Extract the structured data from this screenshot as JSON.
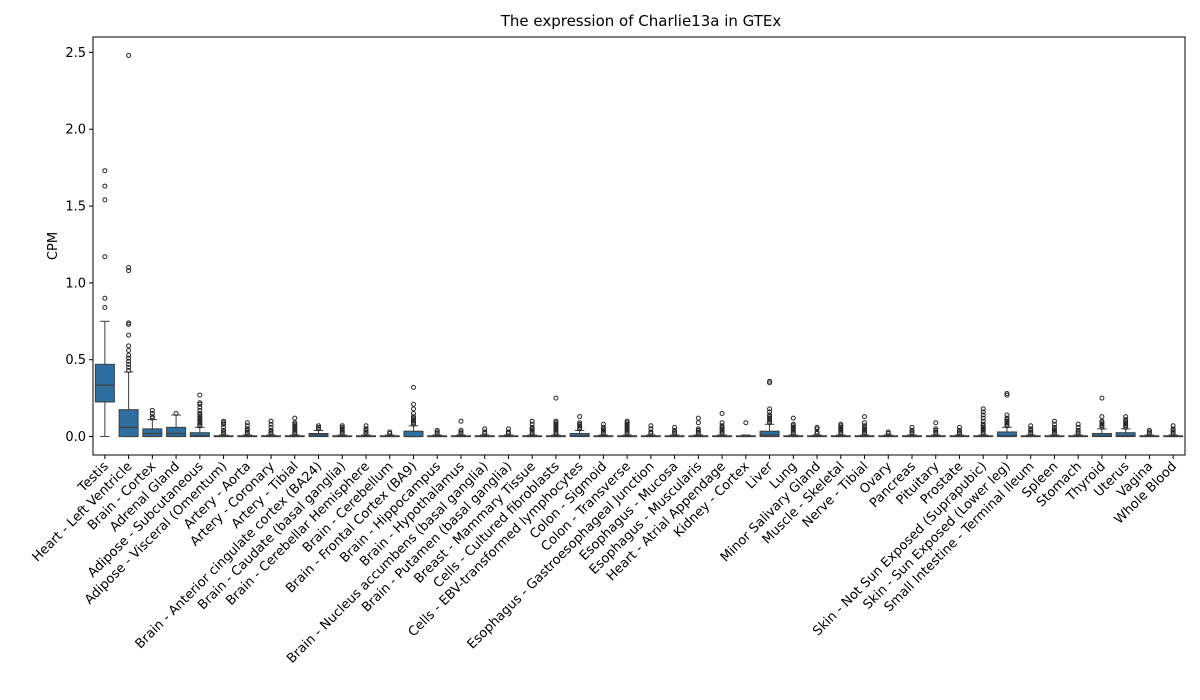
{
  "chart_data": {
    "type": "box",
    "title": "The expression of Charlie13a in GTEx",
    "xlabel": "",
    "ylabel": "CPM",
    "ylim": [
      -0.12,
      2.6
    ],
    "yticks": [
      0.0,
      0.5,
      1.0,
      1.5,
      2.0,
      2.5
    ],
    "ytick_labels": [
      "0.0",
      "0.5",
      "1.0",
      "1.5",
      "2.0",
      "2.5"
    ],
    "grid": false,
    "box_color": "#2f6f9f",
    "categories": [
      "Testis",
      "Heart - Left Ventricle",
      "Brain - Cortex",
      "Adrenal Gland",
      "Adipose - Subcutaneous",
      "Adipose - Visceral (Omentum)",
      "Artery - Aorta",
      "Artery - Coronary",
      "Artery - Tibial",
      "Brain - Anterior cingulate cortex (BA24)",
      "Brain - Caudate (basal ganglia)",
      "Brain - Cerebellar Hemisphere",
      "Brain - Cerebellum",
      "Brain - Frontal Cortex (BA9)",
      "Brain - Hippocampus",
      "Brain - Hypothalamus",
      "Brain - Nucleus accumbens (basal ganglia)",
      "Brain - Putamen (basal ganglia)",
      "Breast - Mammary Tissue",
      "Cells - Cultured fibroblasts",
      "Cells - EBV-transformed lymphocytes",
      "Colon - Sigmoid",
      "Colon - Transverse",
      "Esophagus - Gastroesophageal Junction",
      "Esophagus - Mucosa",
      "Esophagus - Muscularis",
      "Heart - Atrial Appendage",
      "Kidney - Cortex",
      "Liver",
      "Lung",
      "Minor Salivary Gland",
      "Muscle - Skeletal",
      "Nerve - Tibial",
      "Ovary",
      "Pancreas",
      "Pituitary",
      "Prostate",
      "Skin - Not Sun Exposed (Suprapubic)",
      "Skin - Sun Exposed (Lower leg)",
      "Small Intestine - Terminal Ileum",
      "Spleen",
      "Stomach",
      "Thyroid",
      "Uterus",
      "Vagina",
      "Whole Blood"
    ],
    "boxes": [
      {
        "whislo": 0.0,
        "q1": 0.225,
        "med": 0.335,
        "q3": 0.47,
        "whishi": 0.75,
        "fliers": [
          0.84,
          0.9,
          1.17,
          1.54,
          1.63,
          1.73
        ]
      },
      {
        "whislo": 0.0,
        "q1": 0.0,
        "med": 0.06,
        "q3": 0.175,
        "whishi": 0.42,
        "fliers": [
          0.43,
          0.45,
          0.47,
          0.49,
          0.51,
          0.53,
          0.56,
          0.59,
          0.66,
          0.73,
          0.74,
          1.08,
          1.1,
          2.48
        ]
      },
      {
        "whislo": 0.0,
        "q1": 0.0,
        "med": 0.02,
        "q3": 0.05,
        "whishi": 0.11,
        "fliers": [
          0.12,
          0.13,
          0.15,
          0.17
        ]
      },
      {
        "whislo": 0.0,
        "q1": 0.0,
        "med": 0.02,
        "q3": 0.06,
        "whishi": 0.14,
        "fliers": [
          0.15
        ]
      },
      {
        "whislo": 0.0,
        "q1": 0.0,
        "med": 0.005,
        "q3": 0.025,
        "whishi": 0.06,
        "fliers": [
          0.07,
          0.08,
          0.09,
          0.1,
          0.11,
          0.12,
          0.13,
          0.14,
          0.15,
          0.17,
          0.19,
          0.21,
          0.22,
          0.27
        ]
      },
      {
        "whislo": 0.0,
        "q1": 0.0,
        "med": 0.0,
        "q3": 0.005,
        "whishi": 0.01,
        "fliers": [
          0.02,
          0.03,
          0.04,
          0.06,
          0.08,
          0.09,
          0.1
        ]
      },
      {
        "whislo": 0.0,
        "q1": 0.0,
        "med": 0.0,
        "q3": 0.005,
        "whishi": 0.01,
        "fliers": [
          0.02,
          0.03,
          0.04,
          0.05,
          0.07,
          0.09
        ]
      },
      {
        "whislo": 0.0,
        "q1": 0.0,
        "med": 0.0,
        "q3": 0.005,
        "whishi": 0.01,
        "fliers": [
          0.02,
          0.03,
          0.04,
          0.06,
          0.08,
          0.1
        ]
      },
      {
        "whislo": 0.0,
        "q1": 0.0,
        "med": 0.0,
        "q3": 0.005,
        "whishi": 0.01,
        "fliers": [
          0.02,
          0.03,
          0.04,
          0.05,
          0.06,
          0.07,
          0.08,
          0.09,
          0.12
        ]
      },
      {
        "whislo": 0.0,
        "q1": 0.0,
        "med": 0.01,
        "q3": 0.02,
        "whishi": 0.04,
        "fliers": [
          0.05,
          0.06,
          0.07
        ]
      },
      {
        "whislo": 0.0,
        "q1": 0.0,
        "med": 0.0,
        "q3": 0.005,
        "whishi": 0.01,
        "fliers": [
          0.02,
          0.03,
          0.04,
          0.05,
          0.06,
          0.07
        ]
      },
      {
        "whislo": 0.0,
        "q1": 0.0,
        "med": 0.0,
        "q3": 0.005,
        "whishi": 0.01,
        "fliers": [
          0.02,
          0.03,
          0.04,
          0.05,
          0.07
        ]
      },
      {
        "whislo": 0.0,
        "q1": 0.0,
        "med": 0.0,
        "q3": 0.005,
        "whishi": 0.01,
        "fliers": [
          0.02,
          0.03
        ]
      },
      {
        "whislo": 0.0,
        "q1": 0.0,
        "med": 0.0,
        "q3": 0.035,
        "whishi": 0.07,
        "fliers": [
          0.08,
          0.09,
          0.1,
          0.11,
          0.12,
          0.13,
          0.15,
          0.18,
          0.21,
          0.32
        ]
      },
      {
        "whislo": 0.0,
        "q1": 0.0,
        "med": 0.0,
        "q3": 0.005,
        "whishi": 0.01,
        "fliers": [
          0.02,
          0.03,
          0.04
        ]
      },
      {
        "whislo": 0.0,
        "q1": 0.0,
        "med": 0.0,
        "q3": 0.005,
        "whishi": 0.01,
        "fliers": [
          0.02,
          0.03,
          0.04,
          0.1
        ]
      },
      {
        "whislo": 0.0,
        "q1": 0.0,
        "med": 0.0,
        "q3": 0.005,
        "whishi": 0.01,
        "fliers": [
          0.02,
          0.03,
          0.05
        ]
      },
      {
        "whislo": 0.0,
        "q1": 0.0,
        "med": 0.0,
        "q3": 0.005,
        "whishi": 0.01,
        "fliers": [
          0.02,
          0.03,
          0.05
        ]
      },
      {
        "whislo": 0.0,
        "q1": 0.0,
        "med": 0.0,
        "q3": 0.005,
        "whishi": 0.01,
        "fliers": [
          0.02,
          0.03,
          0.04,
          0.05,
          0.06,
          0.08,
          0.1
        ]
      },
      {
        "whislo": 0.0,
        "q1": 0.0,
        "med": 0.0,
        "q3": 0.005,
        "whishi": 0.01,
        "fliers": [
          0.02,
          0.03,
          0.04,
          0.05,
          0.06,
          0.07,
          0.08,
          0.09,
          0.1,
          0.25
        ]
      },
      {
        "whislo": 0.0,
        "q1": 0.0,
        "med": 0.005,
        "q3": 0.02,
        "whishi": 0.04,
        "fliers": [
          0.05,
          0.06,
          0.07,
          0.08,
          0.09,
          0.13
        ]
      },
      {
        "whislo": 0.0,
        "q1": 0.0,
        "med": 0.0,
        "q3": 0.005,
        "whishi": 0.01,
        "fliers": [
          0.02,
          0.03,
          0.04,
          0.05,
          0.06,
          0.08
        ]
      },
      {
        "whislo": 0.0,
        "q1": 0.0,
        "med": 0.0,
        "q3": 0.005,
        "whishi": 0.01,
        "fliers": [
          0.02,
          0.03,
          0.04,
          0.05,
          0.06,
          0.07,
          0.08,
          0.09,
          0.1
        ]
      },
      {
        "whislo": 0.0,
        "q1": 0.0,
        "med": 0.0,
        "q3": 0.005,
        "whishi": 0.01,
        "fliers": [
          0.02,
          0.03,
          0.05,
          0.07
        ]
      },
      {
        "whislo": 0.0,
        "q1": 0.0,
        "med": 0.0,
        "q3": 0.005,
        "whishi": 0.01,
        "fliers": [
          0.02,
          0.03,
          0.04,
          0.06
        ]
      },
      {
        "whislo": 0.0,
        "q1": 0.0,
        "med": 0.0,
        "q3": 0.005,
        "whishi": 0.01,
        "fliers": [
          0.02,
          0.03,
          0.04,
          0.05,
          0.09,
          0.12
        ]
      },
      {
        "whislo": 0.0,
        "q1": 0.0,
        "med": 0.0,
        "q3": 0.005,
        "whishi": 0.01,
        "fliers": [
          0.02,
          0.03,
          0.04,
          0.05,
          0.06,
          0.07,
          0.09,
          0.15
        ]
      },
      {
        "whislo": 0.0,
        "q1": 0.0,
        "med": 0.0,
        "q3": 0.005,
        "whishi": 0.01,
        "fliers": [
          0.09
        ]
      },
      {
        "whislo": 0.0,
        "q1": 0.0,
        "med": 0.01,
        "q3": 0.035,
        "whishi": 0.08,
        "fliers": [
          0.09,
          0.1,
          0.11,
          0.12,
          0.13,
          0.14,
          0.16,
          0.18,
          0.35,
          0.36
        ]
      },
      {
        "whislo": 0.0,
        "q1": 0.0,
        "med": 0.0,
        "q3": 0.005,
        "whishi": 0.01,
        "fliers": [
          0.02,
          0.03,
          0.04,
          0.05,
          0.06,
          0.07,
          0.08,
          0.12
        ]
      },
      {
        "whislo": 0.0,
        "q1": 0.0,
        "med": 0.0,
        "q3": 0.005,
        "whishi": 0.01,
        "fliers": [
          0.02,
          0.03,
          0.05,
          0.06
        ]
      },
      {
        "whislo": 0.0,
        "q1": 0.0,
        "med": 0.0,
        "q3": 0.005,
        "whishi": 0.01,
        "fliers": [
          0.02,
          0.03,
          0.04,
          0.05,
          0.06,
          0.07,
          0.08
        ]
      },
      {
        "whislo": 0.0,
        "q1": 0.0,
        "med": 0.0,
        "q3": 0.005,
        "whishi": 0.01,
        "fliers": [
          0.02,
          0.03,
          0.04,
          0.05,
          0.06,
          0.07,
          0.09,
          0.13
        ]
      },
      {
        "whislo": 0.0,
        "q1": 0.0,
        "med": 0.0,
        "q3": 0.005,
        "whishi": 0.01,
        "fliers": [
          0.02,
          0.03
        ]
      },
      {
        "whislo": 0.0,
        "q1": 0.0,
        "med": 0.0,
        "q3": 0.005,
        "whishi": 0.01,
        "fliers": [
          0.02,
          0.03,
          0.04,
          0.06
        ]
      },
      {
        "whislo": 0.0,
        "q1": 0.0,
        "med": 0.0,
        "q3": 0.005,
        "whishi": 0.01,
        "fliers": [
          0.02,
          0.03,
          0.04,
          0.05,
          0.09
        ]
      },
      {
        "whislo": 0.0,
        "q1": 0.0,
        "med": 0.0,
        "q3": 0.005,
        "whishi": 0.01,
        "fliers": [
          0.02,
          0.03,
          0.04,
          0.06
        ]
      },
      {
        "whislo": 0.0,
        "q1": 0.0,
        "med": 0.0,
        "q3": 0.005,
        "whishi": 0.01,
        "fliers": [
          0.02,
          0.03,
          0.04,
          0.05,
          0.06,
          0.07,
          0.08,
          0.1,
          0.12,
          0.14,
          0.16,
          0.18
        ]
      },
      {
        "whislo": 0.0,
        "q1": 0.0,
        "med": 0.005,
        "q3": 0.03,
        "whishi": 0.06,
        "fliers": [
          0.07,
          0.08,
          0.09,
          0.1,
          0.11,
          0.12,
          0.14,
          0.27,
          0.28
        ]
      },
      {
        "whislo": 0.0,
        "q1": 0.0,
        "med": 0.0,
        "q3": 0.005,
        "whishi": 0.01,
        "fliers": [
          0.02,
          0.03,
          0.04,
          0.05,
          0.07
        ]
      },
      {
        "whislo": 0.0,
        "q1": 0.0,
        "med": 0.0,
        "q3": 0.005,
        "whishi": 0.01,
        "fliers": [
          0.02,
          0.03,
          0.04,
          0.05,
          0.06,
          0.08,
          0.1
        ]
      },
      {
        "whislo": 0.0,
        "q1": 0.0,
        "med": 0.0,
        "q3": 0.005,
        "whishi": 0.01,
        "fliers": [
          0.02,
          0.03,
          0.04,
          0.06,
          0.08
        ]
      },
      {
        "whislo": 0.0,
        "q1": 0.0,
        "med": 0.005,
        "q3": 0.02,
        "whishi": 0.05,
        "fliers": [
          0.06,
          0.07,
          0.08,
          0.09,
          0.1,
          0.13,
          0.25
        ]
      },
      {
        "whislo": 0.0,
        "q1": 0.0,
        "med": 0.005,
        "q3": 0.025,
        "whishi": 0.05,
        "fliers": [
          0.06,
          0.07,
          0.08,
          0.09,
          0.1,
          0.11,
          0.13
        ]
      },
      {
        "whislo": 0.0,
        "q1": 0.0,
        "med": 0.0,
        "q3": 0.005,
        "whishi": 0.01,
        "fliers": [
          0.02,
          0.03,
          0.04
        ]
      },
      {
        "whislo": 0.0,
        "q1": 0.0,
        "med": 0.0,
        "q3": 0.005,
        "whishi": 0.01,
        "fliers": [
          0.02,
          0.03,
          0.04,
          0.05,
          0.07
        ]
      }
    ]
  }
}
